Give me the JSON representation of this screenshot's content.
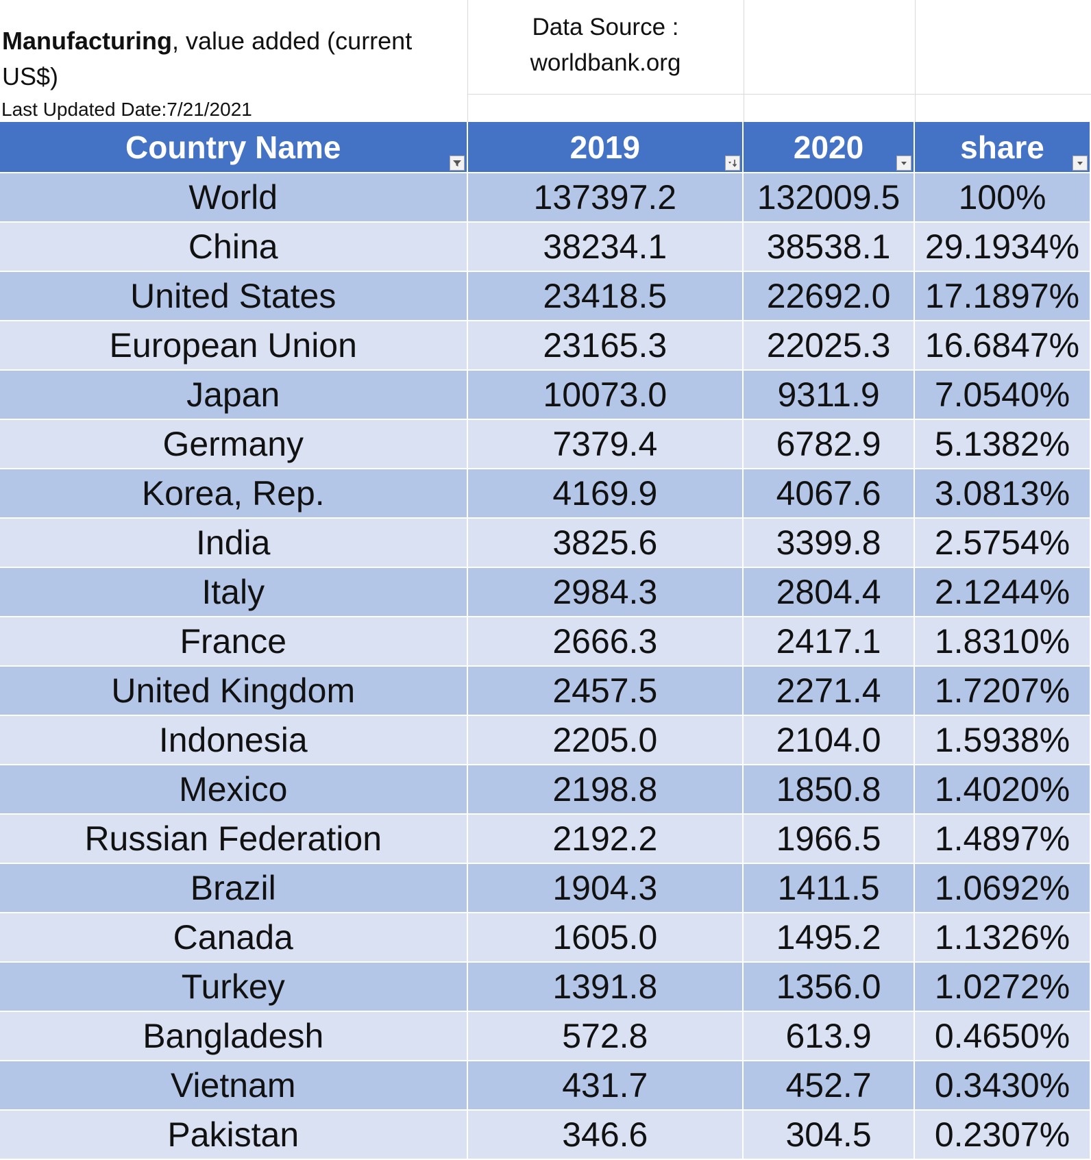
{
  "header": {
    "title_bold": "Manufacturing",
    "title_rest": ", value added (current US$)",
    "last_updated": "Last Updated Date:7/21/2021",
    "source_line1": "Data Source :",
    "source_line2": "worldbank.org"
  },
  "table": {
    "columns": [
      {
        "label": "Country Name",
        "filter_icon": "filter-funnel-icon"
      },
      {
        "label": "2019",
        "filter_icon": "sort-descending-icon"
      },
      {
        "label": "2020",
        "filter_icon": "dropdown-arrow-icon"
      },
      {
        "label": "share",
        "filter_icon": "dropdown-arrow-icon"
      }
    ],
    "rows": [
      {
        "country": "World",
        "y2019": "137397.2",
        "y2020": "132009.5",
        "share": "100%"
      },
      {
        "country": "China",
        "y2019": "38234.1",
        "y2020": "38538.1",
        "share": "29.1934%"
      },
      {
        "country": "United States",
        "y2019": "23418.5",
        "y2020": "22692.0",
        "share": "17.1897%"
      },
      {
        "country": "European Union",
        "y2019": "23165.3",
        "y2020": "22025.3",
        "share": "16.6847%"
      },
      {
        "country": "Japan",
        "y2019": "10073.0",
        "y2020": "9311.9",
        "share": "7.0540%"
      },
      {
        "country": "Germany",
        "y2019": "7379.4",
        "y2020": "6782.9",
        "share": "5.1382%"
      },
      {
        "country": "Korea, Rep.",
        "y2019": "4169.9",
        "y2020": "4067.6",
        "share": "3.0813%"
      },
      {
        "country": "India",
        "y2019": "3825.6",
        "y2020": "3399.8",
        "share": "2.5754%"
      },
      {
        "country": "Italy",
        "y2019": "2984.3",
        "y2020": "2804.4",
        "share": "2.1244%"
      },
      {
        "country": "France",
        "y2019": "2666.3",
        "y2020": "2417.1",
        "share": "1.8310%"
      },
      {
        "country": "United Kingdom",
        "y2019": "2457.5",
        "y2020": "2271.4",
        "share": "1.7207%"
      },
      {
        "country": "Indonesia",
        "y2019": "2205.0",
        "y2020": "2104.0",
        "share": "1.5938%"
      },
      {
        "country": "Mexico",
        "y2019": "2198.8",
        "y2020": "1850.8",
        "share": "1.4020%"
      },
      {
        "country": "Russian Federation",
        "y2019": "2192.2",
        "y2020": "1966.5",
        "share": "1.4897%"
      },
      {
        "country": "Brazil",
        "y2019": "1904.3",
        "y2020": "1411.5",
        "share": "1.0692%"
      },
      {
        "country": "Canada",
        "y2019": "1605.0",
        "y2020": "1495.2",
        "share": "1.1326%"
      },
      {
        "country": "Turkey",
        "y2019": "1391.8",
        "y2020": "1356.0",
        "share": "1.0272%"
      },
      {
        "country": "Bangladesh",
        "y2019": "572.8",
        "y2020": "613.9",
        "share": "0.4650%"
      },
      {
        "country": "Vietnam",
        "y2019": "431.7",
        "y2020": "452.7",
        "share": "0.3430%"
      },
      {
        "country": "Pakistan",
        "y2019": "346.6",
        "y2020": "304.5",
        "share": "0.2307%"
      }
    ]
  },
  "colors": {
    "header_bg": "#4472c4",
    "row_dark": "#b4c6e7",
    "row_light": "#d9e1f2"
  }
}
